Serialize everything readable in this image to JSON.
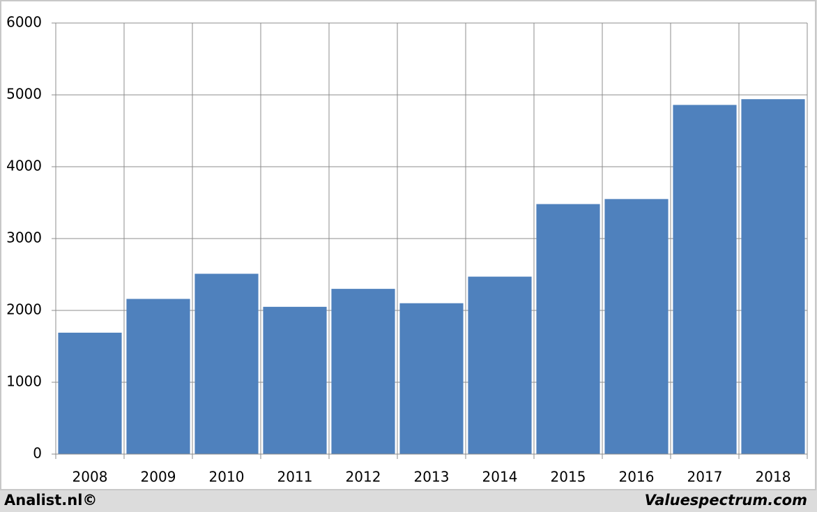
{
  "chart_data": {
    "type": "bar",
    "categories": [
      "2008",
      "2009",
      "2010",
      "2011",
      "2012",
      "2013",
      "2014",
      "2015",
      "2016",
      "2017",
      "2018"
    ],
    "values": [
      1690,
      2160,
      2510,
      2050,
      2300,
      2100,
      2470,
      3480,
      3550,
      4860,
      4940
    ],
    "color": "#4f81bd",
    "ylim": [
      0,
      6000
    ],
    "yticks": [
      0,
      1000,
      2000,
      3000,
      4000,
      5000,
      6000
    ],
    "grid": true,
    "footer_left": "Analist.nl©",
    "footer_right": "Valuespectrum.com"
  }
}
